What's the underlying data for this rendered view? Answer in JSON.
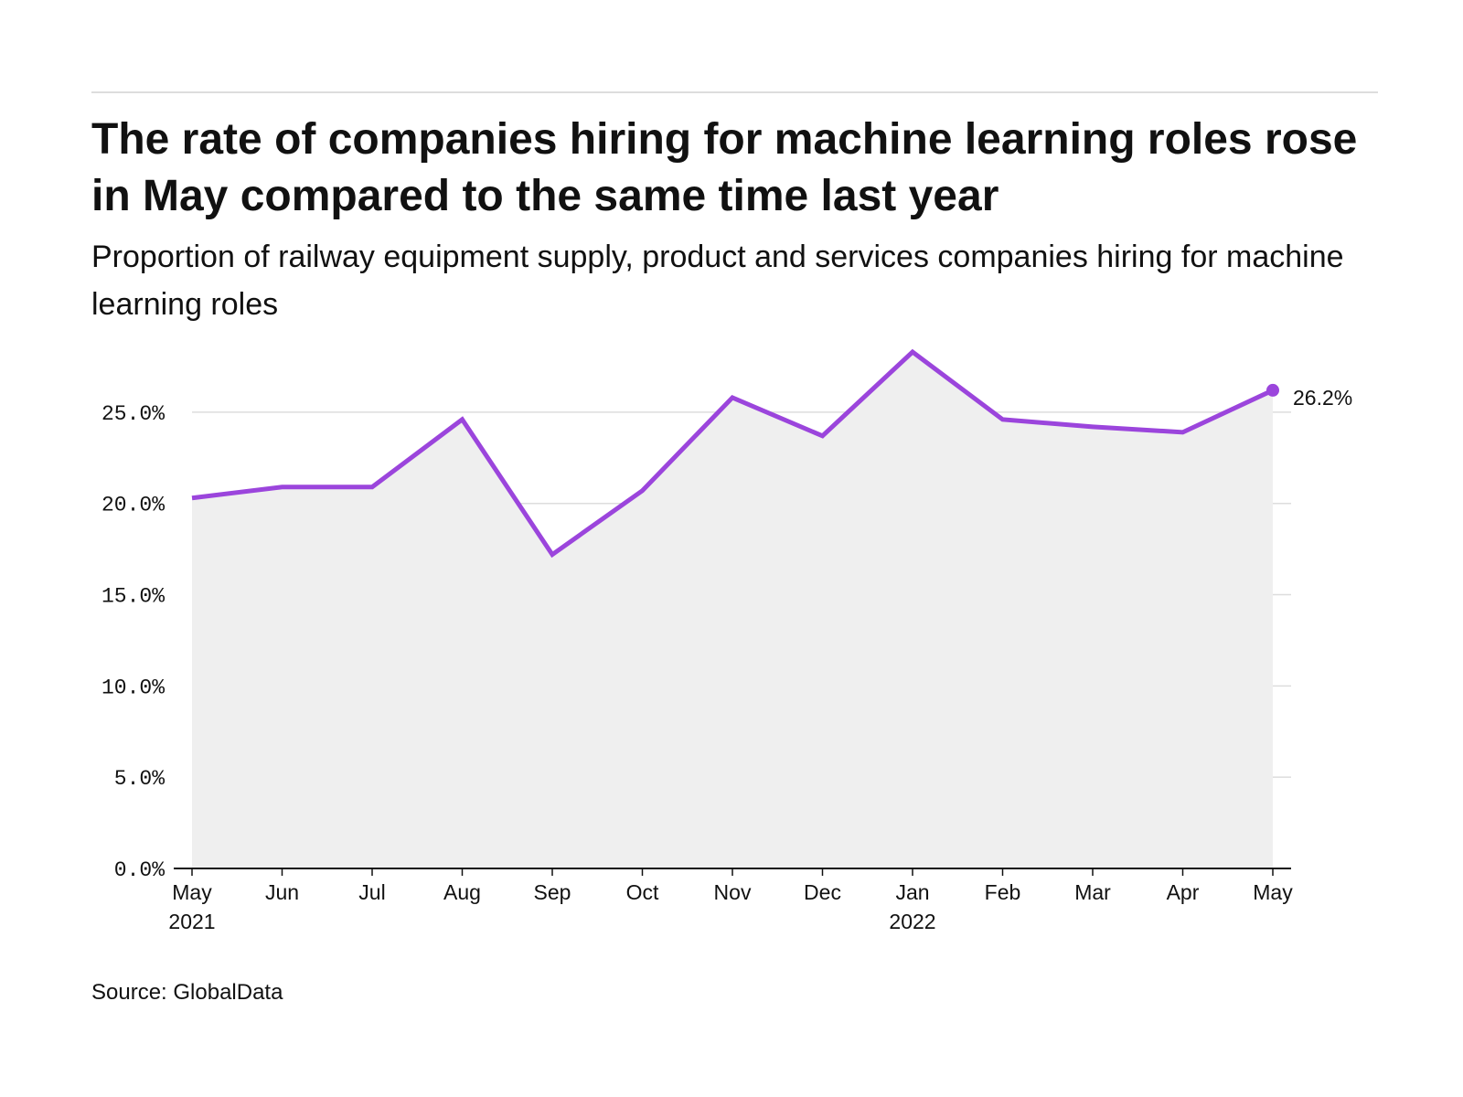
{
  "title": "The rate of companies hiring for machine learning roles rose in May compared to the same time last year",
  "subtitle": "Proportion of railway equipment supply, product and services companies hiring for machine learning roles",
  "source": "Source: GlobalData",
  "colors": {
    "line": "#9b45dc",
    "area": "#efefef",
    "grid": "#dddddd",
    "axis": "#111111"
  },
  "chart_data": {
    "type": "line",
    "title": "The rate of companies hiring for machine learning roles rose in May compared to the same time last year",
    "subtitle": "Proportion of railway equipment supply, product and services companies hiring for machine learning roles",
    "xlabel": "",
    "ylabel": "",
    "categories": [
      "May",
      "Jun",
      "Jul",
      "Aug",
      "Sep",
      "Oct",
      "Nov",
      "Dec",
      "Jan",
      "Feb",
      "Mar",
      "Apr",
      "May"
    ],
    "category_years": [
      "2021",
      "",
      "",
      "",
      "",
      "",
      "",
      "",
      "2022",
      "",
      "",
      "",
      ""
    ],
    "series": [
      {
        "values": [
          20.3,
          20.9,
          20.9,
          24.6,
          17.2,
          20.7,
          25.8,
          23.7,
          28.3,
          24.6,
          24.2,
          23.9,
          26.2
        ]
      }
    ],
    "end_label": "26.2%",
    "ylim": [
      0,
      28.3
    ],
    "yticks": [
      0,
      5,
      10,
      15,
      20,
      25
    ],
    "ytick_labels": [
      "0.0%",
      "5.0%",
      "10.0%",
      "15.0%",
      "20.0%",
      "25.0%"
    ],
    "grid": true,
    "area_fill": true,
    "legend": "none"
  }
}
